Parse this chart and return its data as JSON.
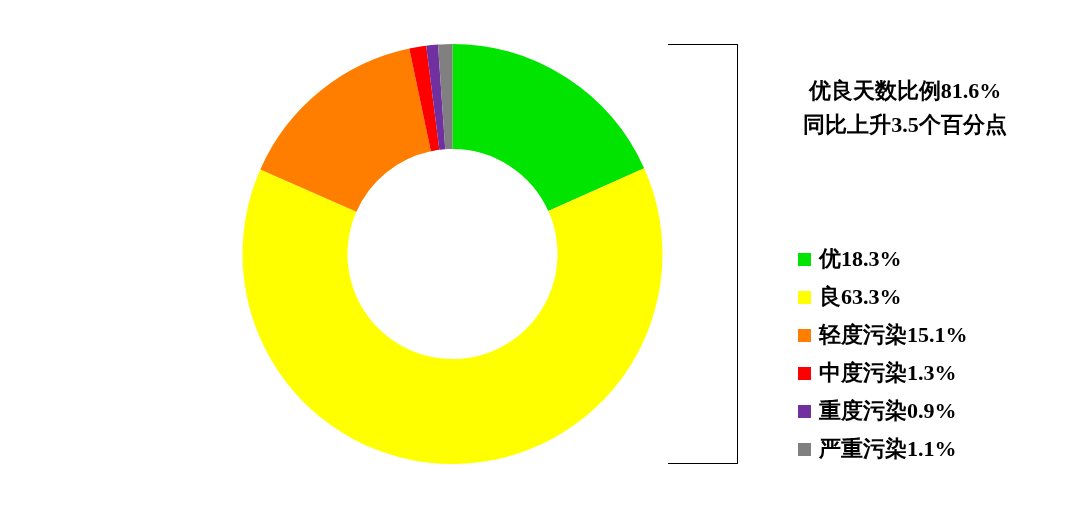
{
  "chart_data": {
    "type": "donut",
    "categories": [
      "优18.3%",
      "良63.3%",
      "轻度污染15.1%",
      "中度污染1.3%",
      "重度污染0.9%",
      "严重污染1.1%"
    ],
    "values": [
      18.3,
      63.3,
      15.1,
      1.3,
      0.9,
      1.1
    ],
    "colors": [
      "#00e400",
      "#ffff00",
      "#ff7e00",
      "#ff0000",
      "#7030a0",
      "#808080"
    ],
    "legend": "right",
    "annotations": [
      "优良天数比例81.6%",
      "同比上升3.5个百分点"
    ]
  }
}
